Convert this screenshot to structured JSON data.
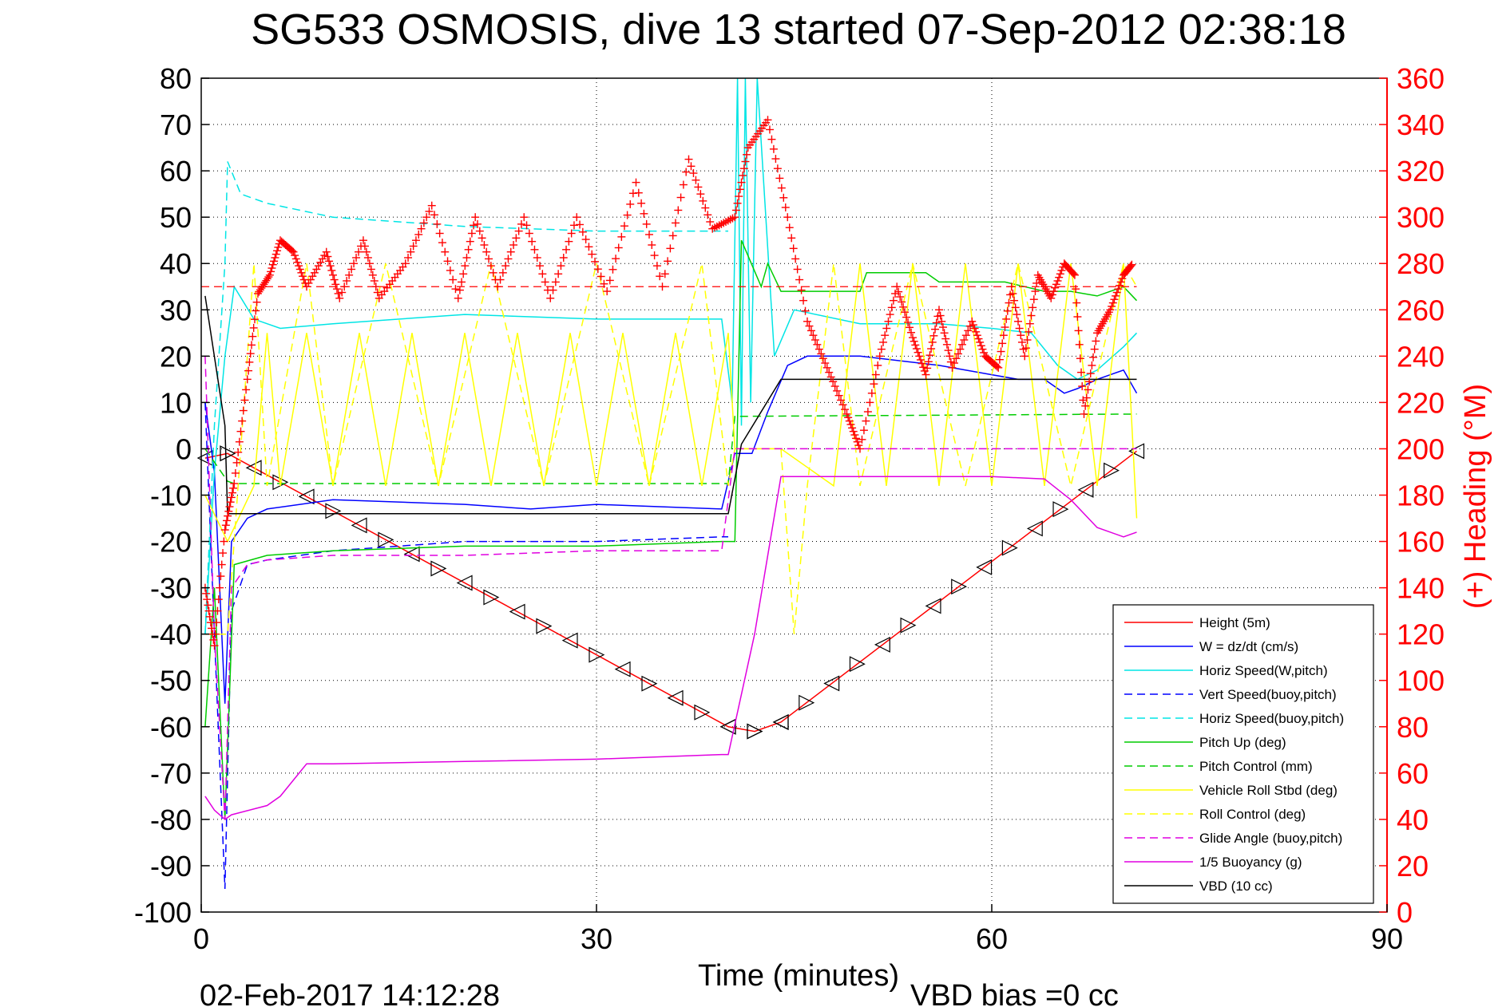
{
  "chart_data": {
    "type": "line",
    "title": "SG533 OSMOSIS, dive 13 started 07-Sep-2012 02:38:18",
    "xlabel": "Time (minutes)",
    "ylabel": "",
    "ylabel_right": "(+) Heading (°M)",
    "xlim": [
      0,
      90
    ],
    "ylim": [
      -100,
      80
    ],
    "ylim_right": [
      0,
      360
    ],
    "x_ticks": [
      "0",
      "30",
      "60",
      "90"
    ],
    "y_ticks": [
      "80",
      "70",
      "60",
      "50",
      "40",
      "30",
      "20",
      "10",
      "0",
      "-10",
      "-20",
      "-30",
      "-40",
      "-50",
      "-60",
      "-70",
      "-80",
      "-90",
      "-100"
    ],
    "y_ticks_right": [
      "360",
      "340",
      "320",
      "300",
      "280",
      "260",
      "240",
      "220",
      "200",
      "180",
      "160",
      "140",
      "120",
      "100",
      "80",
      "60",
      "40",
      "20",
      "0"
    ],
    "grid": true,
    "legend_position": "bottom-right",
    "footer_date": "02-Feb-2017 14:12:28",
    "footer_note": "VBD bias =0 cc",
    "heading_series": {
      "name": "(+) Heading (°M)",
      "color": "#ff0000",
      "marker": "+",
      "x": [
        0.3,
        1.0,
        1.8,
        2.5,
        3.5,
        4.3,
        5.2,
        6.0,
        7.0,
        8.0,
        9.5,
        10.5,
        12.3,
        13.5,
        15.5,
        17.5,
        19.5,
        20.8,
        22.5,
        24.5,
        26.5,
        28.5,
        30.8,
        33.0,
        35.0,
        37.0,
        38.8,
        40.5,
        41.5,
        43.0,
        44.5,
        46.0,
        47.5,
        49.0,
        50.0,
        51.5,
        52.8,
        54.0,
        55.0,
        56.0,
        57.0,
        58.5,
        59.5,
        60.5,
        61.5,
        62.5,
        63.5,
        64.5,
        65.5,
        66.3,
        67.0,
        68.0,
        69.0,
        70.0,
        70.7
      ],
      "y": [
        140,
        115,
        165,
        185,
        230,
        267,
        275,
        290,
        285,
        270,
        285,
        265,
        290,
        265,
        280,
        305,
        265,
        300,
        270,
        300,
        265,
        300,
        268,
        315,
        270,
        325,
        295,
        300,
        330,
        342,
        300,
        255,
        235,
        215,
        200,
        240,
        270,
        248,
        232,
        260,
        235,
        255,
        240,
        235,
        270,
        240,
        275,
        265,
        280,
        275,
        215,
        250,
        260,
        275,
        280
      ]
    },
    "series": [
      {
        "name": "Height (5m)",
        "color": "#ff0000",
        "dash": "solid",
        "markers": "triangle",
        "x": [
          0.3,
          2.0,
          40.0,
          42.0,
          44.0,
          71.0
        ],
        "y": [
          -2,
          -1,
          -60,
          -61,
          -59,
          -0.5
        ]
      },
      {
        "name": "W = dz/dt (cm/s)",
        "color": "#0000ff",
        "dash": "solid",
        "x": [
          0.3,
          1.0,
          1.8,
          2.3,
          3.5,
          5.0,
          10.0,
          20.0,
          25.0,
          30.0,
          39.5,
          40.5,
          41.8,
          43.0,
          44.5,
          46.0,
          50.0,
          56.0,
          60.0,
          62.0,
          64.0,
          65.5,
          66.5,
          68.0,
          70.0,
          71.0
        ],
        "y": [
          10,
          -5,
          -55,
          -20,
          -15,
          -13,
          -11,
          -12,
          -13,
          -12,
          -13,
          -1,
          -1,
          8,
          18,
          20,
          20,
          18,
          16,
          15,
          15,
          12,
          13,
          15,
          17,
          12
        ]
      },
      {
        "name": "Horiz Speed(W,pitch)",
        "color": "#00e5e5",
        "dash": "solid",
        "x": [
          0.3,
          1.0,
          1.8,
          2.5,
          4.0,
          6.0,
          10.0,
          20.0,
          30.0,
          39.5,
          40.3,
          40.7,
          41.0,
          41.3,
          41.7,
          42.2,
          43.5,
          45.0,
          50.0,
          56.0,
          60.0,
          63.0,
          65.0,
          66.5,
          68.0,
          70.0,
          71.0
        ],
        "y": [
          -40,
          -5,
          20,
          35,
          28,
          26,
          27,
          29,
          28,
          28,
          10,
          80,
          5,
          80,
          10,
          80,
          20,
          30,
          27,
          27,
          26,
          25,
          18,
          15,
          17,
          22,
          25
        ]
      },
      {
        "name": "Vert Speed(buoy,pitch)",
        "color": "#0000ff",
        "dash": "dashed",
        "x": [
          0.3,
          1.0,
          1.8,
          2.3,
          3.5,
          5.0,
          10.0,
          20.0,
          30.0,
          39.5,
          40.0
        ],
        "y": [
          10,
          -40,
          -95,
          -35,
          -25,
          -24,
          -22,
          -20,
          -20,
          -19,
          -19
        ]
      },
      {
        "name": "Horiz Speed(buoy,pitch)",
        "color": "#00e5e5",
        "dash": "dashed",
        "x": [
          0.3,
          1.0,
          1.8,
          2.0,
          3.0,
          5.0,
          10.0,
          20.0,
          30.0,
          39.5,
          40.0
        ],
        "y": [
          -40,
          5,
          40,
          62,
          55,
          53,
          50,
          48,
          47,
          47,
          47
        ]
      },
      {
        "name": "Pitch Up (deg)",
        "color": "#00cc00",
        "dash": "solid",
        "x": [
          0.3,
          1.0,
          1.8,
          2.5,
          5.0,
          10.0,
          20.0,
          30.0,
          39.5,
          40.5,
          41.0,
          42.5,
          43.0,
          44.0,
          50.0,
          50.5,
          55.0,
          56.0,
          61.0,
          64.0,
          66.0,
          68.0,
          70.0,
          71.0
        ],
        "y": [
          -60,
          -30,
          -80,
          -25,
          -23,
          -22,
          -21,
          -21,
          -20,
          -20,
          45,
          35,
          40,
          34,
          34,
          38,
          38,
          36,
          36,
          34,
          34,
          33,
          35,
          32
        ]
      },
      {
        "name": "Pitch Control (mm)",
        "color": "#00cc00",
        "dash": "dashed",
        "x": [
          0.3,
          2.0,
          2.5,
          40.0,
          40.5,
          71.0
        ],
        "y": [
          0,
          -7,
          -7.5,
          -7.5,
          7,
          7.5
        ]
      },
      {
        "name": "Vehicle Roll Stbd (deg)",
        "color": "#ffff00",
        "dash": "solid",
        "x": [
          0.3,
          2.0,
          4.0,
          5.0,
          6.0,
          8.0,
          10.0,
          12.0,
          14.0,
          16.0,
          18.0,
          20.0,
          22.0,
          24.0,
          26.0,
          28.0,
          30.0,
          32.0,
          34.0,
          36.0,
          38.0,
          40.0,
          40.5,
          44.0,
          48.0,
          50.0,
          52.0,
          54.0,
          56.0,
          58.0,
          60.0,
          62.0,
          64.0,
          66.0,
          68.0,
          70.0,
          71.0
        ],
        "y": [
          -10,
          -20,
          -8,
          25,
          -8,
          25,
          -8,
          25,
          -8,
          25,
          -8,
          25,
          -8,
          25,
          -8,
          25,
          -8,
          25,
          -8,
          25,
          -8,
          25,
          0,
          0,
          -8,
          40,
          -8,
          40,
          -8,
          40,
          -8,
          40,
          -8,
          40,
          -8,
          40,
          -15
        ]
      },
      {
        "name": "Roll Control (deg)",
        "color": "#ffff00",
        "dash": "dashed",
        "x": [
          0.3,
          2.0,
          4.0,
          5.0,
          8.0,
          10.0,
          14.0,
          18.0,
          22.0,
          26.0,
          30.0,
          34.0,
          38.0,
          40.0,
          40.5,
          44.0,
          45.0,
          46.0,
          48.0,
          50.0,
          54.0,
          58.0,
          62.0,
          66.0,
          70.0,
          71.0
        ],
        "y": [
          -40,
          -40,
          40,
          -8,
          40,
          -8,
          40,
          -8,
          40,
          -8,
          40,
          -8,
          40,
          -8,
          0,
          0,
          -40,
          -8,
          40,
          -8,
          40,
          -8,
          40,
          -8,
          40,
          35
        ]
      },
      {
        "name": "Glide Angle (buoy,pitch)",
        "color": "#e000e0",
        "dash": "dashed",
        "x": [
          0.3,
          1.0,
          1.8,
          2.3,
          3.5,
          5.0,
          10.0,
          20.0,
          30.0,
          39.5,
          40.5,
          71.0
        ],
        "y": [
          20,
          -40,
          -80,
          -30,
          -25,
          -24,
          -23,
          -23,
          -22,
          -22,
          0,
          0
        ]
      },
      {
        "name": "1/5 Buoyancy (g)",
        "color": "#e000e0",
        "dash": "solid",
        "x": [
          0.3,
          1.0,
          1.8,
          2.3,
          5.0,
          6.0,
          8.0,
          10.0,
          20.0,
          30.0,
          39.5,
          40.0,
          42.0,
          44.0,
          46.0,
          50.0,
          60.0,
          64.0,
          66.0,
          68.0,
          70.0,
          71.0
        ],
        "y": [
          -75,
          -78,
          -80,
          -79,
          -77,
          -75,
          -68,
          -68,
          -67.5,
          -67,
          -66,
          -66,
          -40,
          -6,
          -6,
          -6,
          -6,
          -6.5,
          -11,
          -17,
          -19,
          -18
        ]
      },
      {
        "name": "VBD (10 cc)",
        "color": "#000000",
        "dash": "solid",
        "x": [
          0.3,
          1.8,
          2.0,
          40.0,
          41.0,
          44.0,
          71.0
        ],
        "y": [
          33,
          5,
          -14,
          -14,
          1,
          15,
          15
        ]
      }
    ]
  }
}
